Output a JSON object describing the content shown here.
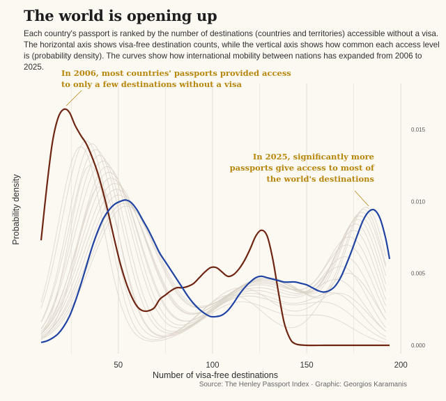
{
  "title": "The world is opening up",
  "subtitle": "Each country's passport is ranked by the number of destinations (countries and territories) accessible without a visa. The horizontal axis shows visa-free destination counts, while the vertical axis shows how common each access level is (probability density). The curves show how international mobility between nations has expanded from 2006 to 2025.",
  "caption": "Source: The Henley Passport Index · Graphic: Georgios Karamanis",
  "colors": {
    "background": "#fcf9f3",
    "highlight_2006": "#6e2511",
    "highlight_2025": "#1f43a3",
    "other_years": "#d9d2c8",
    "annotation": "#b8860b",
    "grid": "#e3ddd4"
  },
  "annotations": [
    {
      "lines": [
        "In 2006, most countries' passports provided access",
        "to only a few destinations without a visa"
      ]
    },
    {
      "lines": [
        "In 2025, significantly more",
        "passports give access to most of",
        "the world's destinations"
      ]
    }
  ],
  "chart_data": {
    "type": "line",
    "title": "The world is opening up",
    "xlabel": "Number of visa-free destinations",
    "ylabel": "Probability density",
    "xlim": [
      9,
      194
    ],
    "ylim": [
      0,
      0.0166
    ],
    "x_ticks": [
      50,
      100,
      150,
      200
    ],
    "y_ticks": [
      "0.000",
      "0.005",
      "0.010",
      "0.015"
    ],
    "y_tick_values": [
      0,
      0.005,
      0.01,
      0.015
    ],
    "grid": "vertical",
    "legend": "none",
    "series": [
      {
        "name": "2006",
        "x": [
          9,
          12,
          15,
          18,
          21,
          24,
          27,
          30,
          33,
          36,
          39,
          42,
          45,
          48,
          51,
          54,
          57,
          60,
          63,
          66,
          69,
          72,
          75,
          78,
          81,
          84,
          87,
          90,
          93,
          96,
          99,
          102,
          105,
          108,
          111,
          114,
          117,
          120,
          123,
          126,
          129,
          132,
          135,
          138,
          141,
          144,
          150,
          160,
          170,
          180,
          194
        ],
        "values": [
          0.0073,
          0.011,
          0.0141,
          0.0158,
          0.0164,
          0.0162,
          0.0153,
          0.0146,
          0.014,
          0.0131,
          0.012,
          0.0106,
          0.009,
          0.0073,
          0.0057,
          0.0044,
          0.0034,
          0.0027,
          0.0024,
          0.0024,
          0.0026,
          0.0032,
          0.0035,
          0.0038,
          0.004,
          0.004,
          0.0041,
          0.0043,
          0.0047,
          0.0051,
          0.0054,
          0.0054,
          0.0051,
          0.0048,
          0.0049,
          0.0053,
          0.0059,
          0.0067,
          0.0076,
          0.008,
          0.0076,
          0.006,
          0.0037,
          0.0016,
          0.0005,
          0.0001,
          0.0,
          0.0,
          0.0,
          0.0,
          0.0
        ]
      },
      {
        "name": "2025",
        "x": [
          9,
          12,
          15,
          18,
          21,
          24,
          27,
          30,
          33,
          36,
          39,
          42,
          45,
          48,
          51,
          54,
          57,
          60,
          63,
          66,
          69,
          72,
          75,
          78,
          81,
          84,
          87,
          90,
          93,
          96,
          99,
          102,
          105,
          108,
          111,
          114,
          117,
          120,
          123,
          126,
          129,
          132,
          135,
          138,
          141,
          144,
          147,
          150,
          153,
          156,
          159,
          162,
          165,
          168,
          171,
          174,
          177,
          180,
          183,
          186,
          189,
          192,
          194
        ],
        "values": [
          0.0002,
          0.0003,
          0.0005,
          0.0008,
          0.0013,
          0.002,
          0.003,
          0.0042,
          0.0055,
          0.0068,
          0.0079,
          0.0088,
          0.0094,
          0.0098,
          0.01,
          0.0101,
          0.0099,
          0.0094,
          0.0087,
          0.008,
          0.0072,
          0.0064,
          0.0058,
          0.0052,
          0.0046,
          0.004,
          0.0034,
          0.0029,
          0.0025,
          0.0022,
          0.002,
          0.002,
          0.0021,
          0.0024,
          0.0029,
          0.0035,
          0.004,
          0.0044,
          0.0047,
          0.0048,
          0.0047,
          0.0046,
          0.0045,
          0.0044,
          0.0044,
          0.0044,
          0.0043,
          0.0042,
          0.004,
          0.0038,
          0.0037,
          0.0038,
          0.0041,
          0.0047,
          0.0056,
          0.0066,
          0.0077,
          0.0087,
          0.0093,
          0.0094,
          0.0088,
          0.0074,
          0.006
        ]
      }
    ],
    "background_series": [
      {
        "a": 0.0138,
        "m1": 30,
        "s1": 12,
        "b": 0.003,
        "m2": 115,
        "s2": 20,
        "c": 0.0018,
        "m3": 160,
        "s3": 15
      },
      {
        "a": 0.0142,
        "m1": 33,
        "s1": 13,
        "b": 0.0034,
        "m2": 118,
        "s2": 22,
        "c": 0.0025,
        "m3": 163,
        "s3": 15
      },
      {
        "a": 0.014,
        "m1": 36,
        "s1": 13,
        "b": 0.0036,
        "m2": 120,
        "s2": 22,
        "c": 0.0032,
        "m3": 166,
        "s3": 14
      },
      {
        "a": 0.0136,
        "m1": 38,
        "s1": 14,
        "b": 0.0038,
        "m2": 122,
        "s2": 23,
        "c": 0.004,
        "m3": 168,
        "s3": 14
      },
      {
        "a": 0.0132,
        "m1": 40,
        "s1": 14,
        "b": 0.004,
        "m2": 124,
        "s2": 24,
        "c": 0.0048,
        "m3": 170,
        "s3": 13
      },
      {
        "a": 0.0128,
        "m1": 42,
        "s1": 15,
        "b": 0.0042,
        "m2": 125,
        "s2": 24,
        "c": 0.0055,
        "m3": 172,
        "s3": 13
      },
      {
        "a": 0.0124,
        "m1": 44,
        "s1": 15,
        "b": 0.0043,
        "m2": 126,
        "s2": 25,
        "c": 0.0062,
        "m3": 173,
        "s3": 13
      },
      {
        "a": 0.012,
        "m1": 45,
        "s1": 16,
        "b": 0.0044,
        "m2": 126,
        "s2": 25,
        "c": 0.0068,
        "m3": 174,
        "s3": 13
      },
      {
        "a": 0.0116,
        "m1": 46,
        "s1": 16,
        "b": 0.0045,
        "m2": 127,
        "s2": 25,
        "c": 0.0073,
        "m3": 176,
        "s3": 12
      },
      {
        "a": 0.0112,
        "m1": 48,
        "s1": 17,
        "b": 0.0045,
        "m2": 127,
        "s2": 26,
        "c": 0.0077,
        "m3": 177,
        "s3": 12
      },
      {
        "a": 0.0108,
        "m1": 49,
        "s1": 17,
        "b": 0.0046,
        "m2": 128,
        "s2": 26,
        "c": 0.008,
        "m3": 178,
        "s3": 12
      },
      {
        "a": 0.0104,
        "m1": 50,
        "s1": 17,
        "b": 0.0046,
        "m2": 128,
        "s2": 26,
        "c": 0.0083,
        "m3": 179,
        "s3": 12
      },
      {
        "a": 0.01,
        "m1": 52,
        "s1": 18,
        "b": 0.0046,
        "m2": 128,
        "s2": 26,
        "c": 0.0086,
        "m3": 180,
        "s3": 12
      },
      {
        "a": 0.0098,
        "m1": 53,
        "s1": 18,
        "b": 0.0047,
        "m2": 129,
        "s2": 26,
        "c": 0.0088,
        "m3": 181,
        "s3": 11
      },
      {
        "a": 0.0096,
        "m1": 54,
        "s1": 18,
        "b": 0.0047,
        "m2": 129,
        "s2": 26,
        "c": 0.009,
        "m3": 182,
        "s3": 11
      },
      {
        "a": 0.011,
        "m1": 40,
        "s1": 12,
        "b": 0.0035,
        "m2": 110,
        "s2": 18,
        "c": 0.005,
        "m3": 172,
        "s3": 14
      },
      {
        "a": 0.0125,
        "m1": 35,
        "s1": 11,
        "b": 0.004,
        "m2": 115,
        "s2": 20,
        "c": 0.0035,
        "m3": 168,
        "s3": 15
      }
    ]
  }
}
